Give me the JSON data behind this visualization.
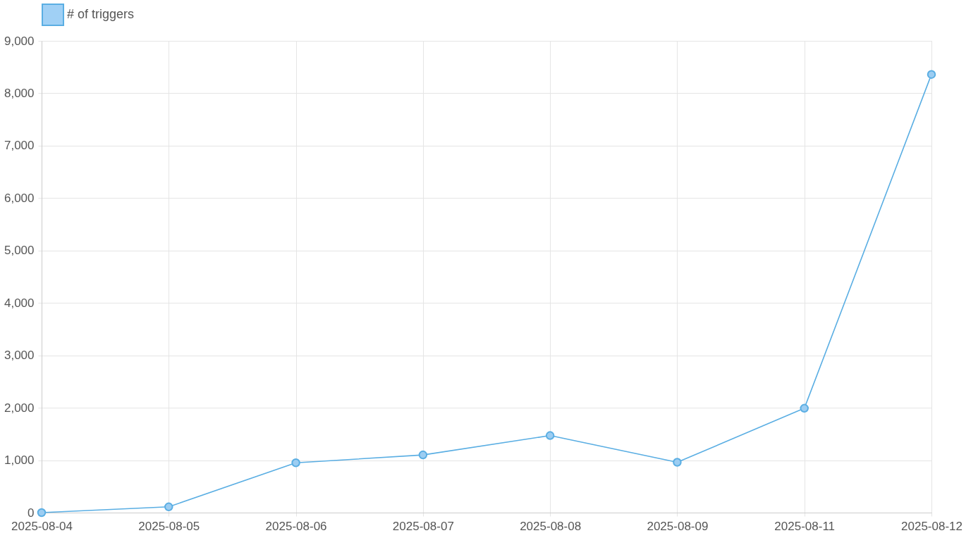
{
  "chart_data": {
    "type": "line",
    "categories": [
      "2025-08-04",
      "2025-08-05",
      "2025-08-06",
      "2025-08-07",
      "2025-08-08",
      "2025-08-09",
      "2025-08-11",
      "2025-08-12"
    ],
    "series": [
      {
        "name": "# of triggers",
        "color": "#5aaee3",
        "values": [
          0,
          110,
          950,
          1100,
          1470,
          960,
          1990,
          8360
        ]
      }
    ],
    "ylim": [
      0,
      9000
    ],
    "yticks": [
      {
        "value": 0,
        "label": "0"
      },
      {
        "value": 1000,
        "label": "1,000"
      },
      {
        "value": 2000,
        "label": "2,000"
      },
      {
        "value": 3000,
        "label": "3,000"
      },
      {
        "value": 4000,
        "label": "4,000"
      },
      {
        "value": 5000,
        "label": "5,000"
      },
      {
        "value": 6000,
        "label": "6,000"
      },
      {
        "value": 7000,
        "label": "7,000"
      },
      {
        "value": 8000,
        "label": "8,000"
      },
      {
        "value": 9000,
        "label": "9,000"
      }
    ],
    "grid": true,
    "legend": "top",
    "marker": "circle",
    "line_style": "solid"
  }
}
